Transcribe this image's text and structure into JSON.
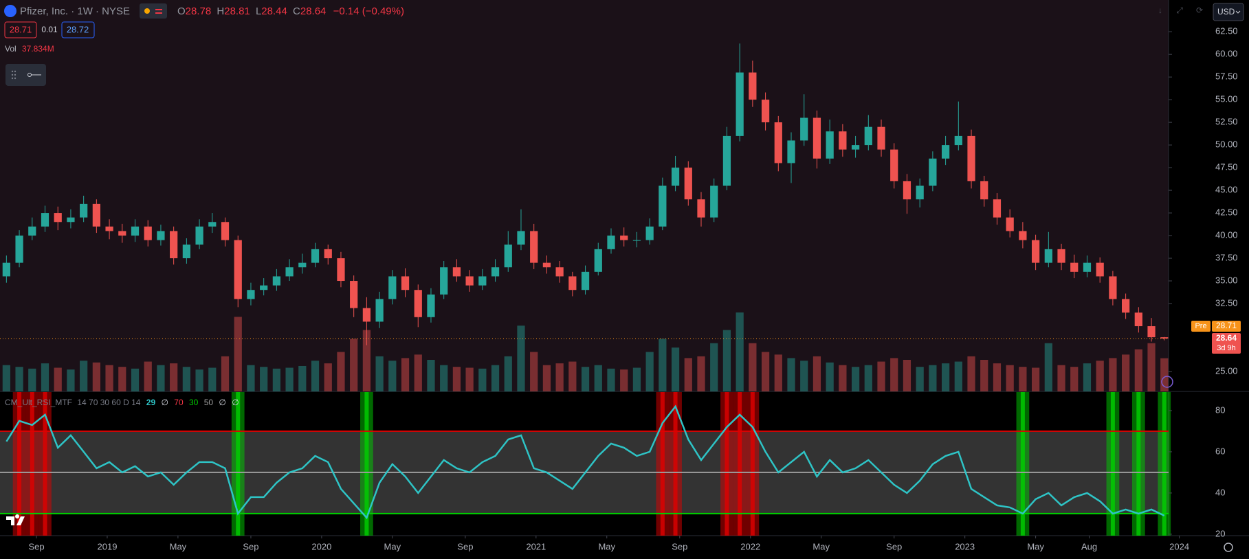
{
  "header": {
    "symbol": "Pfizer, Inc. · 1W · NYSE",
    "ohlc_keys": [
      "O",
      "H",
      "L",
      "C"
    ],
    "change": "−0.14 (−0.49%)",
    "bid": "28.71",
    "spread": "0.01",
    "ask": "28.72",
    "volume_key": "Vol",
    "currency": "USD"
  },
  "chart_data": [
    {
      "type": "candlestick",
      "x": [
        2018.53,
        2018.59,
        2018.65,
        2018.71,
        2018.77,
        2018.83,
        2018.89,
        2018.95,
        2019.01,
        2019.07,
        2019.13,
        2019.19,
        2019.25,
        2019.31,
        2019.37,
        2019.43,
        2019.49,
        2019.55,
        2019.61,
        2019.67,
        2019.73,
        2019.79,
        2019.85,
        2019.91,
        2019.97,
        2020.03,
        2020.09,
        2020.15,
        2020.21,
        2020.27,
        2020.33,
        2020.39,
        2020.45,
        2020.51,
        2020.57,
        2020.63,
        2020.69,
        2020.75,
        2020.81,
        2020.87,
        2020.93,
        2020.99,
        2021.05,
        2021.11,
        2021.17,
        2021.23,
        2021.29,
        2021.35,
        2021.41,
        2021.47,
        2021.53,
        2021.59,
        2021.65,
        2021.71,
        2021.77,
        2021.83,
        2021.89,
        2021.95,
        2022.01,
        2022.07,
        2022.13,
        2022.19,
        2022.25,
        2022.31,
        2022.37,
        2022.43,
        2022.49,
        2022.55,
        2022.61,
        2022.67,
        2022.73,
        2022.79,
        2022.85,
        2022.91,
        2022.97,
        2023.03,
        2023.09,
        2023.15,
        2023.21,
        2023.27,
        2023.33,
        2023.39,
        2023.45,
        2023.51,
        2023.57,
        2023.63,
        2023.69,
        2023.75,
        2023.81,
        2023.87,
        2023.93
      ],
      "open": [
        35.5,
        37,
        40,
        41,
        42.5,
        41.5,
        42,
        43.5,
        41,
        40.5,
        40,
        41,
        39.5,
        40.5,
        37.5,
        39,
        41,
        41.5,
        39.5,
        33,
        34,
        34.5,
        35.5,
        36.5,
        37,
        38.5,
        37.5,
        35,
        32,
        30.5,
        33,
        35.5,
        34,
        31,
        33.5,
        36.5,
        35.5,
        34.5,
        35.5,
        36.5,
        39,
        40.5,
        37,
        36.5,
        35.5,
        34,
        36,
        38.5,
        40,
        39.5,
        39.5,
        41,
        45.5,
        47.5,
        44,
        42,
        45.5,
        51,
        58,
        55,
        52.5,
        48,
        50.5,
        53,
        48.5,
        51.5,
        49.5,
        50,
        52,
        49.5,
        46,
        44,
        45.5,
        48.5,
        50,
        51,
        46,
        44,
        42,
        40.5,
        39.5,
        37,
        38.5,
        37,
        36,
        37,
        35.5,
        33,
        31.5,
        30,
        28.78
      ],
      "high": [
        37.8,
        40.6,
        42,
        43.3,
        43.2,
        42.9,
        44.4,
        44,
        41.8,
        41.3,
        41.8,
        41.7,
        41.2,
        41,
        39.7,
        41.8,
        42.5,
        42,
        40,
        34.8,
        35.3,
        36.3,
        37.4,
        38,
        39.2,
        39,
        38.2,
        35.6,
        33.2,
        33.8,
        36.2,
        36.4,
        34.6,
        34.2,
        37.2,
        37.4,
        36.2,
        36.3,
        37.4,
        40.5,
        42.9,
        41.3,
        37.8,
        37.2,
        36,
        36.7,
        39.2,
        40.8,
        40.9,
        40.4,
        41.9,
        46.4,
        48.8,
        48.2,
        44.8,
        46.3,
        52,
        61.2,
        59.3,
        55.8,
        53.2,
        51.4,
        55.6,
        53.8,
        52.8,
        52.3,
        51,
        53.3,
        52.8,
        50.2,
        46.8,
        46.3,
        49.3,
        51,
        54.8,
        51.7,
        46.6,
        44.7,
        42.9,
        41.5,
        40.1,
        40.4,
        39.1,
        37.9,
        37.8,
        37.6,
        36.1,
        33.6,
        32.1,
        30.9,
        28.81
      ],
      "low": [
        34.8,
        36.5,
        39.5,
        40.4,
        40.6,
        40.8,
        41.5,
        40.3,
        39.6,
        39.2,
        39.3,
        38.8,
        38.9,
        36.8,
        36.9,
        38.5,
        40.3,
        38.8,
        32.1,
        32.3,
        33.4,
        33.9,
        35,
        35.8,
        36.5,
        36.8,
        34.3,
        31,
        27.9,
        29.8,
        32.4,
        33.2,
        29.9,
        30.4,
        33,
        34.9,
        33.8,
        34,
        34.9,
        36,
        38.4,
        36.3,
        35.8,
        34.8,
        33.3,
        33.5,
        35.6,
        38,
        38.8,
        38.7,
        39,
        40.6,
        44.9,
        43.3,
        41,
        41.5,
        45,
        50.4,
        54.2,
        51.6,
        47.1,
        45.8,
        49.9,
        47.4,
        47.9,
        48.7,
        48.6,
        49.4,
        48.7,
        45.2,
        42.4,
        43.1,
        44.9,
        47.8,
        49.4,
        45.2,
        43.2,
        41.2,
        39.8,
        38.6,
        36.2,
        36.5,
        36.2,
        35.3,
        35.4,
        34.8,
        32.3,
        30.8,
        29.3,
        28.3,
        28.44
      ],
      "close": [
        37,
        40,
        41,
        42.5,
        41.5,
        42,
        43.5,
        41,
        40.5,
        40,
        41,
        39.5,
        40.5,
        37.5,
        39,
        41,
        41.5,
        39.5,
        33,
        34,
        34.5,
        35.5,
        36.5,
        37,
        38.5,
        37.5,
        35,
        32,
        30.5,
        33,
        35.5,
        34,
        31,
        33.5,
        36.5,
        35.5,
        34.5,
        35.5,
        36.5,
        39,
        40.5,
        37,
        36.5,
        35.5,
        34,
        36,
        38.5,
        40,
        39.5,
        39.5,
        41,
        45.5,
        47.5,
        44,
        42,
        45.5,
        51,
        58,
        55,
        52.5,
        48,
        50.5,
        53,
        48.5,
        51.5,
        49.5,
        50,
        52,
        49.5,
        46,
        44,
        45.5,
        48.5,
        50,
        51,
        46,
        44,
        42,
        40.5,
        39.5,
        37,
        38.5,
        37,
        36,
        37,
        35.5,
        33,
        31.5,
        30,
        28.78,
        28.64
      ],
      "volume": [
        30,
        28,
        26,
        32,
        27,
        25,
        35,
        33,
        30,
        28,
        26,
        34,
        30,
        32,
        28,
        25,
        27,
        40,
        85,
        30,
        28,
        26,
        27,
        29,
        35,
        32,
        45,
        60,
        70,
        40,
        35,
        38,
        42,
        36,
        30,
        28,
        27,
        26,
        30,
        40,
        75,
        45,
        30,
        32,
        34,
        28,
        30,
        26,
        25,
        27,
        45,
        60,
        50,
        38,
        40,
        55,
        70,
        90,
        55,
        45,
        42,
        38,
        35,
        40,
        33,
        30,
        28,
        30,
        34,
        38,
        36,
        28,
        30,
        32,
        34,
        40,
        36,
        32,
        30,
        28,
        27,
        55,
        30,
        28,
        32,
        35,
        38,
        42,
        48,
        55,
        37.834
      ],
      "volume_value_label": "37.834M",
      "up_color": "#26a69a",
      "down_color": "#ef5350",
      "xlim": [
        2018.5,
        2023.95
      ],
      "xticks": [
        {
          "value": 2018.67,
          "label": "Sep"
        },
        2019,
        {
          "value": 2019.33,
          "label": "May"
        },
        {
          "value": 2019.67,
          "label": "Sep"
        },
        2020,
        {
          "value": 2020.33,
          "label": "May"
        },
        {
          "value": 2020.67,
          "label": "Sep"
        },
        2021,
        {
          "value": 2021.33,
          "label": "May"
        },
        {
          "value": 2021.67,
          "label": "Sep"
        },
        2022,
        {
          "value": 2022.33,
          "label": "May"
        },
        {
          "value": 2022.67,
          "label": "Sep"
        },
        2023,
        {
          "value": 2023.33,
          "label": "May"
        },
        {
          "value": 2023.58,
          "label": "Aug"
        },
        2024
      ],
      "ylim": [
        22.8,
        66.0
      ],
      "yticks": [
        {
          "value": 25,
          "label": "25.00"
        },
        {
          "value": 32.5,
          "label": "32.50"
        },
        {
          "value": 35,
          "label": "35.00"
        },
        {
          "value": 37.5,
          "label": "37.50"
        },
        {
          "value": 40,
          "label": "40.00"
        },
        {
          "value": 42.5,
          "label": "42.50"
        },
        {
          "value": 45,
          "label": "45.00"
        },
        {
          "value": 47.5,
          "label": "47.50"
        },
        {
          "value": 50,
          "label": "50.00"
        },
        {
          "value": 52.5,
          "label": "52.50"
        },
        {
          "value": 55,
          "label": "55.00"
        },
        {
          "value": 57.5,
          "label": "57.50"
        },
        {
          "value": 60,
          "label": "60.00"
        },
        {
          "value": 62.5,
          "label": "62.50"
        }
      ],
      "pre_label": "Pre",
      "pre_market": 28.71,
      "countdown": "3d 9h"
    },
    {
      "type": "line",
      "name": "CM_Ult_RSI_MTF",
      "params": "14 70 30 60 D 14",
      "empty_symbol": "∅",
      "color": "#2ec4c6",
      "values": [
        65,
        75,
        73,
        78,
        62,
        68,
        60,
        52,
        55,
        50,
        53,
        48,
        50,
        44,
        50,
        55,
        55,
        52,
        30,
        38,
        38,
        45,
        50,
        52,
        58,
        55,
        42,
        35,
        28,
        45,
        54,
        48,
        40,
        48,
        56,
        52,
        50,
        55,
        58,
        66,
        68,
        52,
        50,
        46,
        42,
        50,
        58,
        64,
        62,
        58,
        60,
        74,
        82,
        66,
        56,
        64,
        72,
        78,
        72,
        60,
        50,
        55,
        60,
        48,
        56,
        50,
        52,
        56,
        50,
        44,
        40,
        46,
        54,
        58,
        60,
        42,
        38,
        34,
        33,
        30,
        37,
        40,
        34,
        38,
        40,
        36,
        30,
        32,
        30,
        32,
        29
      ],
      "overbought": 70,
      "middle": 50,
      "oversold": 30,
      "overbought_color": "#e00000",
      "middle_color": "#9e9e9e",
      "oversold_color": "#00d000",
      "ylim": [
        19.3,
        89.3
      ],
      "yticks": [
        20,
        40,
        60,
        80
      ]
    }
  ]
}
